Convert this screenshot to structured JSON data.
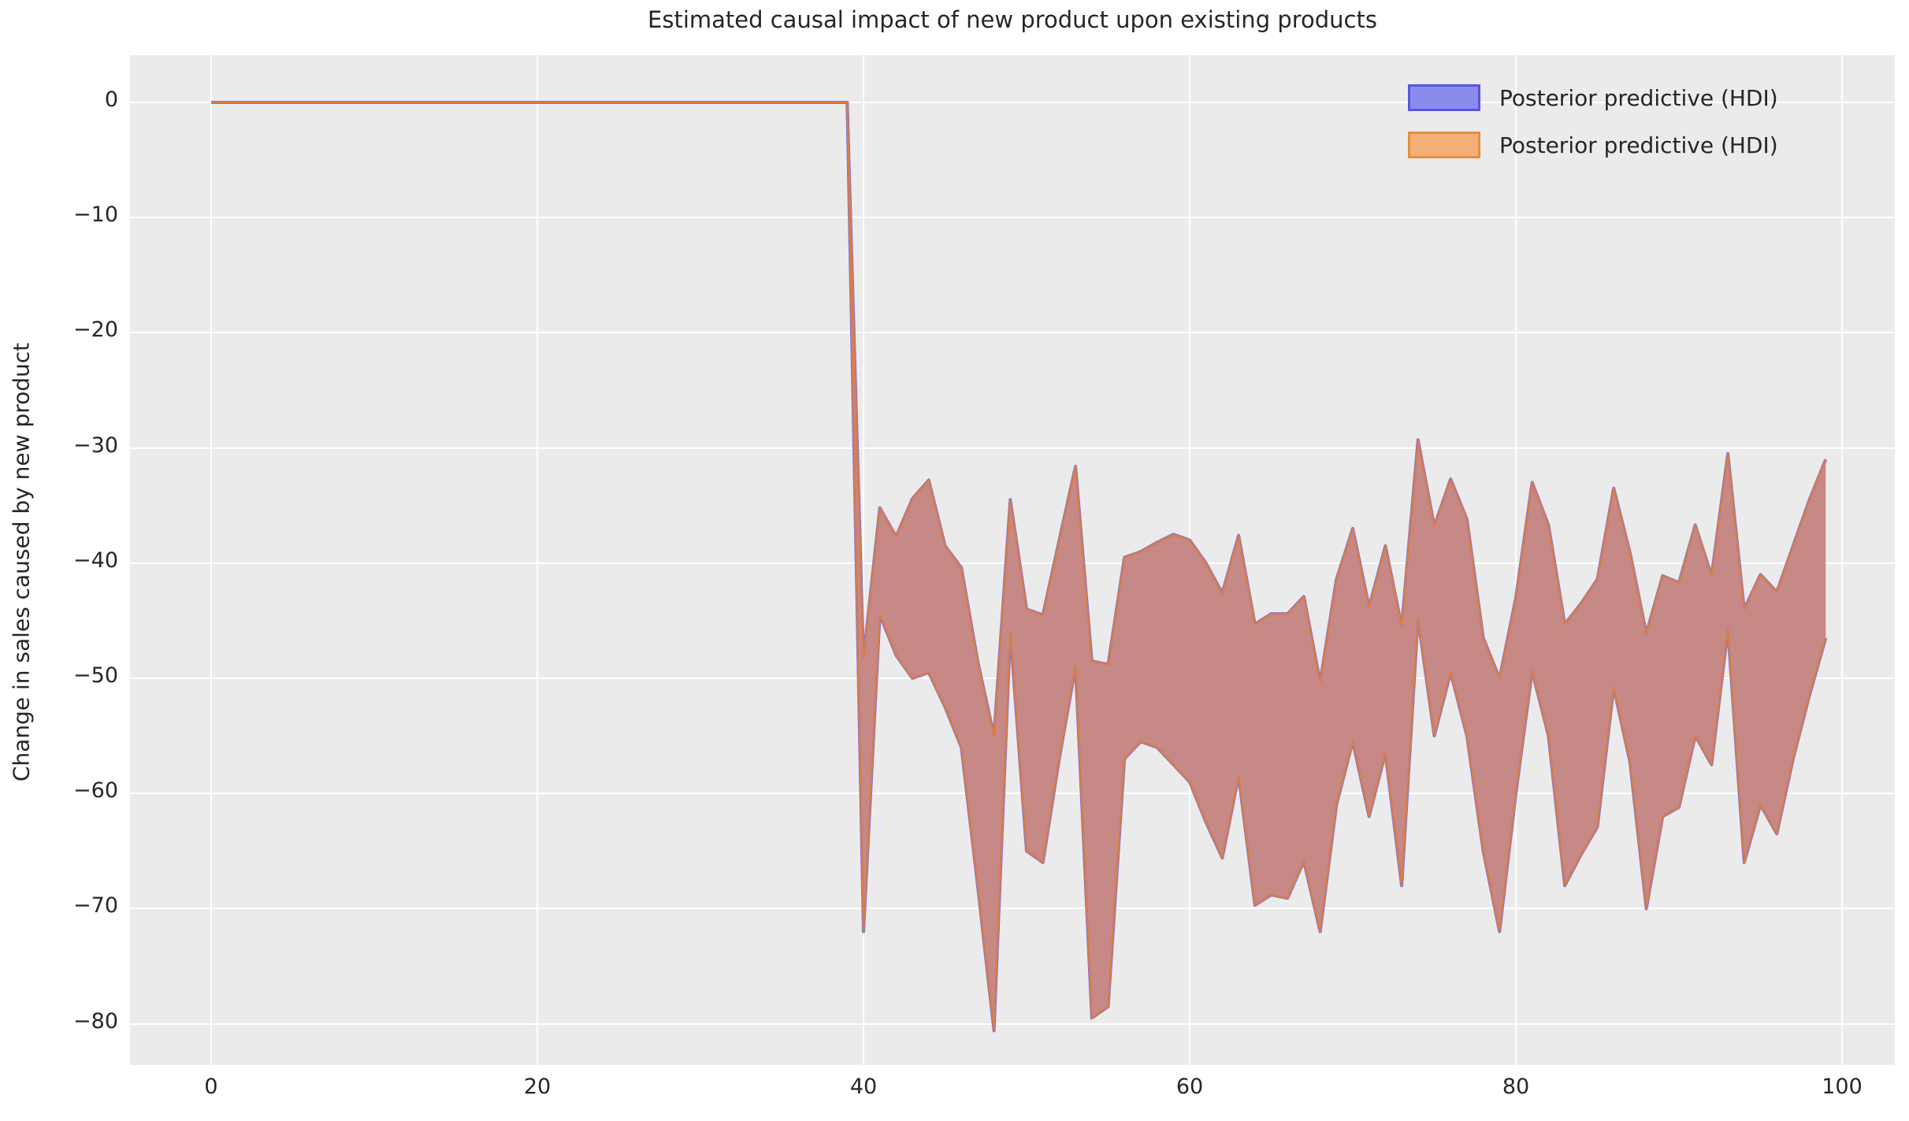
{
  "title": "Estimated causal impact of new product upon existing products",
  "legend": {
    "items": [
      {
        "label": "Posterior predictive (HDI)",
        "fill": "#8b8bee",
        "edge": "#5a55dd"
      },
      {
        "label": "Posterior predictive (HDI)",
        "fill": "#f4ae77",
        "edge": "#e2903f"
      }
    ]
  },
  "colors": {
    "figure_background": "#ffffff",
    "plot_background": "#ebebeb",
    "gridline": "#ffffff",
    "band_fill": "#c48581",
    "band_edge_orange": "#d97c4a",
    "band_edge_purple": "#8273d3",
    "text": "#262626"
  },
  "chart_data": {
    "type": "area",
    "title": "Estimated causal impact of new product upon existing products",
    "xlabel": "",
    "ylabel": "Change in sales caused by new product",
    "legend_position": "upper right",
    "grid": true,
    "xlim": [
      -5,
      103.3
    ],
    "ylim": [
      -83.6,
      4.1
    ],
    "x_ticks": [
      0,
      20,
      40,
      60,
      80,
      100
    ],
    "x_tick_labels": [
      "0",
      "20",
      "40",
      "60",
      "80",
      "100"
    ],
    "y_ticks": [
      0,
      -10,
      -20,
      -30,
      -40,
      -50,
      -60,
      -70,
      -80
    ],
    "y_tick_labels": [
      "0",
      "−10",
      "−20",
      "−30",
      "−40",
      "−50",
      "−60",
      "−70",
      "−80"
    ],
    "description": "Causal impact band: zero until x=39 (pre-intervention), then HDI band between upper and lower bounds for x=40..99. Two overlapping HDI fills (blue and orange) render as a rosy band.",
    "x": [
      0,
      1,
      2,
      3,
      4,
      5,
      6,
      7,
      8,
      9,
      10,
      11,
      12,
      13,
      14,
      15,
      16,
      17,
      18,
      19,
      20,
      21,
      22,
      23,
      24,
      25,
      26,
      27,
      28,
      29,
      30,
      31,
      32,
      33,
      34,
      35,
      36,
      37,
      38,
      39,
      40,
      41,
      42,
      43,
      44,
      45,
      46,
      47,
      48,
      49,
      50,
      51,
      52,
      53,
      54,
      55,
      56,
      57,
      58,
      59,
      60,
      61,
      62,
      63,
      64,
      65,
      66,
      67,
      68,
      69,
      70,
      71,
      72,
      73,
      74,
      75,
      76,
      77,
      78,
      79,
      80,
      81,
      82,
      83,
      84,
      85,
      86,
      87,
      88,
      89,
      90,
      91,
      92,
      93,
      94,
      95,
      96,
      97,
      98,
      99
    ],
    "upper": [
      0,
      0,
      0,
      0,
      0,
      0,
      0,
      0,
      0,
      0,
      0,
      0,
      0,
      0,
      0,
      0,
      0,
      0,
      0,
      0,
      0,
      0,
      0,
      0,
      0,
      0,
      0,
      0,
      0,
      0,
      0,
      0,
      0,
      0,
      0,
      0,
      0,
      0,
      0,
      0,
      -48.3,
      -35.2,
      -37.7,
      -34.4,
      -32.8,
      -38.5,
      -40.4,
      -48.5,
      -55.0,
      -34.5,
      -44.0,
      -44.5,
      -38.0,
      -31.6,
      -48.5,
      -48.8,
      -39.5,
      -39.0,
      -38.2,
      -37.5,
      -38.0,
      -40.0,
      -42.6,
      -37.6,
      -45.3,
      -44.4,
      -44.4,
      -42.9,
      -50.3,
      -41.4,
      -37.0,
      -43.8,
      -38.5,
      -45.5,
      -29.3,
      -36.8,
      -32.7,
      -36.2,
      -46.5,
      -50.0,
      -43.0,
      -33.0,
      -36.7,
      -45.3,
      -43.5,
      -41.4,
      -33.5,
      -39.1,
      -46.1,
      -41.1,
      -41.7,
      -36.7,
      -41.1,
      -30.5,
      -44.0,
      -41.0,
      -42.5,
      -38.5,
      -34.5,
      -31.0
    ],
    "lower": [
      0,
      0,
      0,
      0,
      0,
      0,
      0,
      0,
      0,
      0,
      0,
      0,
      0,
      0,
      0,
      0,
      0,
      0,
      0,
      0,
      0,
      0,
      0,
      0,
      0,
      0,
      0,
      0,
      0,
      0,
      0,
      0,
      0,
      0,
      0,
      0,
      0,
      0,
      0,
      0,
      -72.0,
      -44.5,
      -48.0,
      -50.0,
      -49.5,
      -52.5,
      -56.0,
      -68.0,
      -80.6,
      -46.0,
      -65.0,
      -66.0,
      -57.0,
      -49.0,
      -79.5,
      -78.5,
      -57.0,
      -55.5,
      -56.0,
      -57.5,
      -59.0,
      -62.5,
      -65.6,
      -58.5,
      -69.7,
      -68.8,
      -69.1,
      -65.9,
      -72.0,
      -61.0,
      -55.5,
      -62.0,
      -56.5,
      -68.0,
      -44.8,
      -55.0,
      -49.5,
      -55.0,
      -65.0,
      -72.0,
      -60.0,
      -49.4,
      -55.0,
      -68.0,
      -65.3,
      -62.9,
      -50.8,
      -57.3,
      -70.0,
      -62.0,
      -61.2,
      -55.0,
      -57.5,
      -45.8,
      -66.0,
      -61.0,
      -63.5,
      -57.0,
      -51.5,
      -46.5
    ]
  }
}
